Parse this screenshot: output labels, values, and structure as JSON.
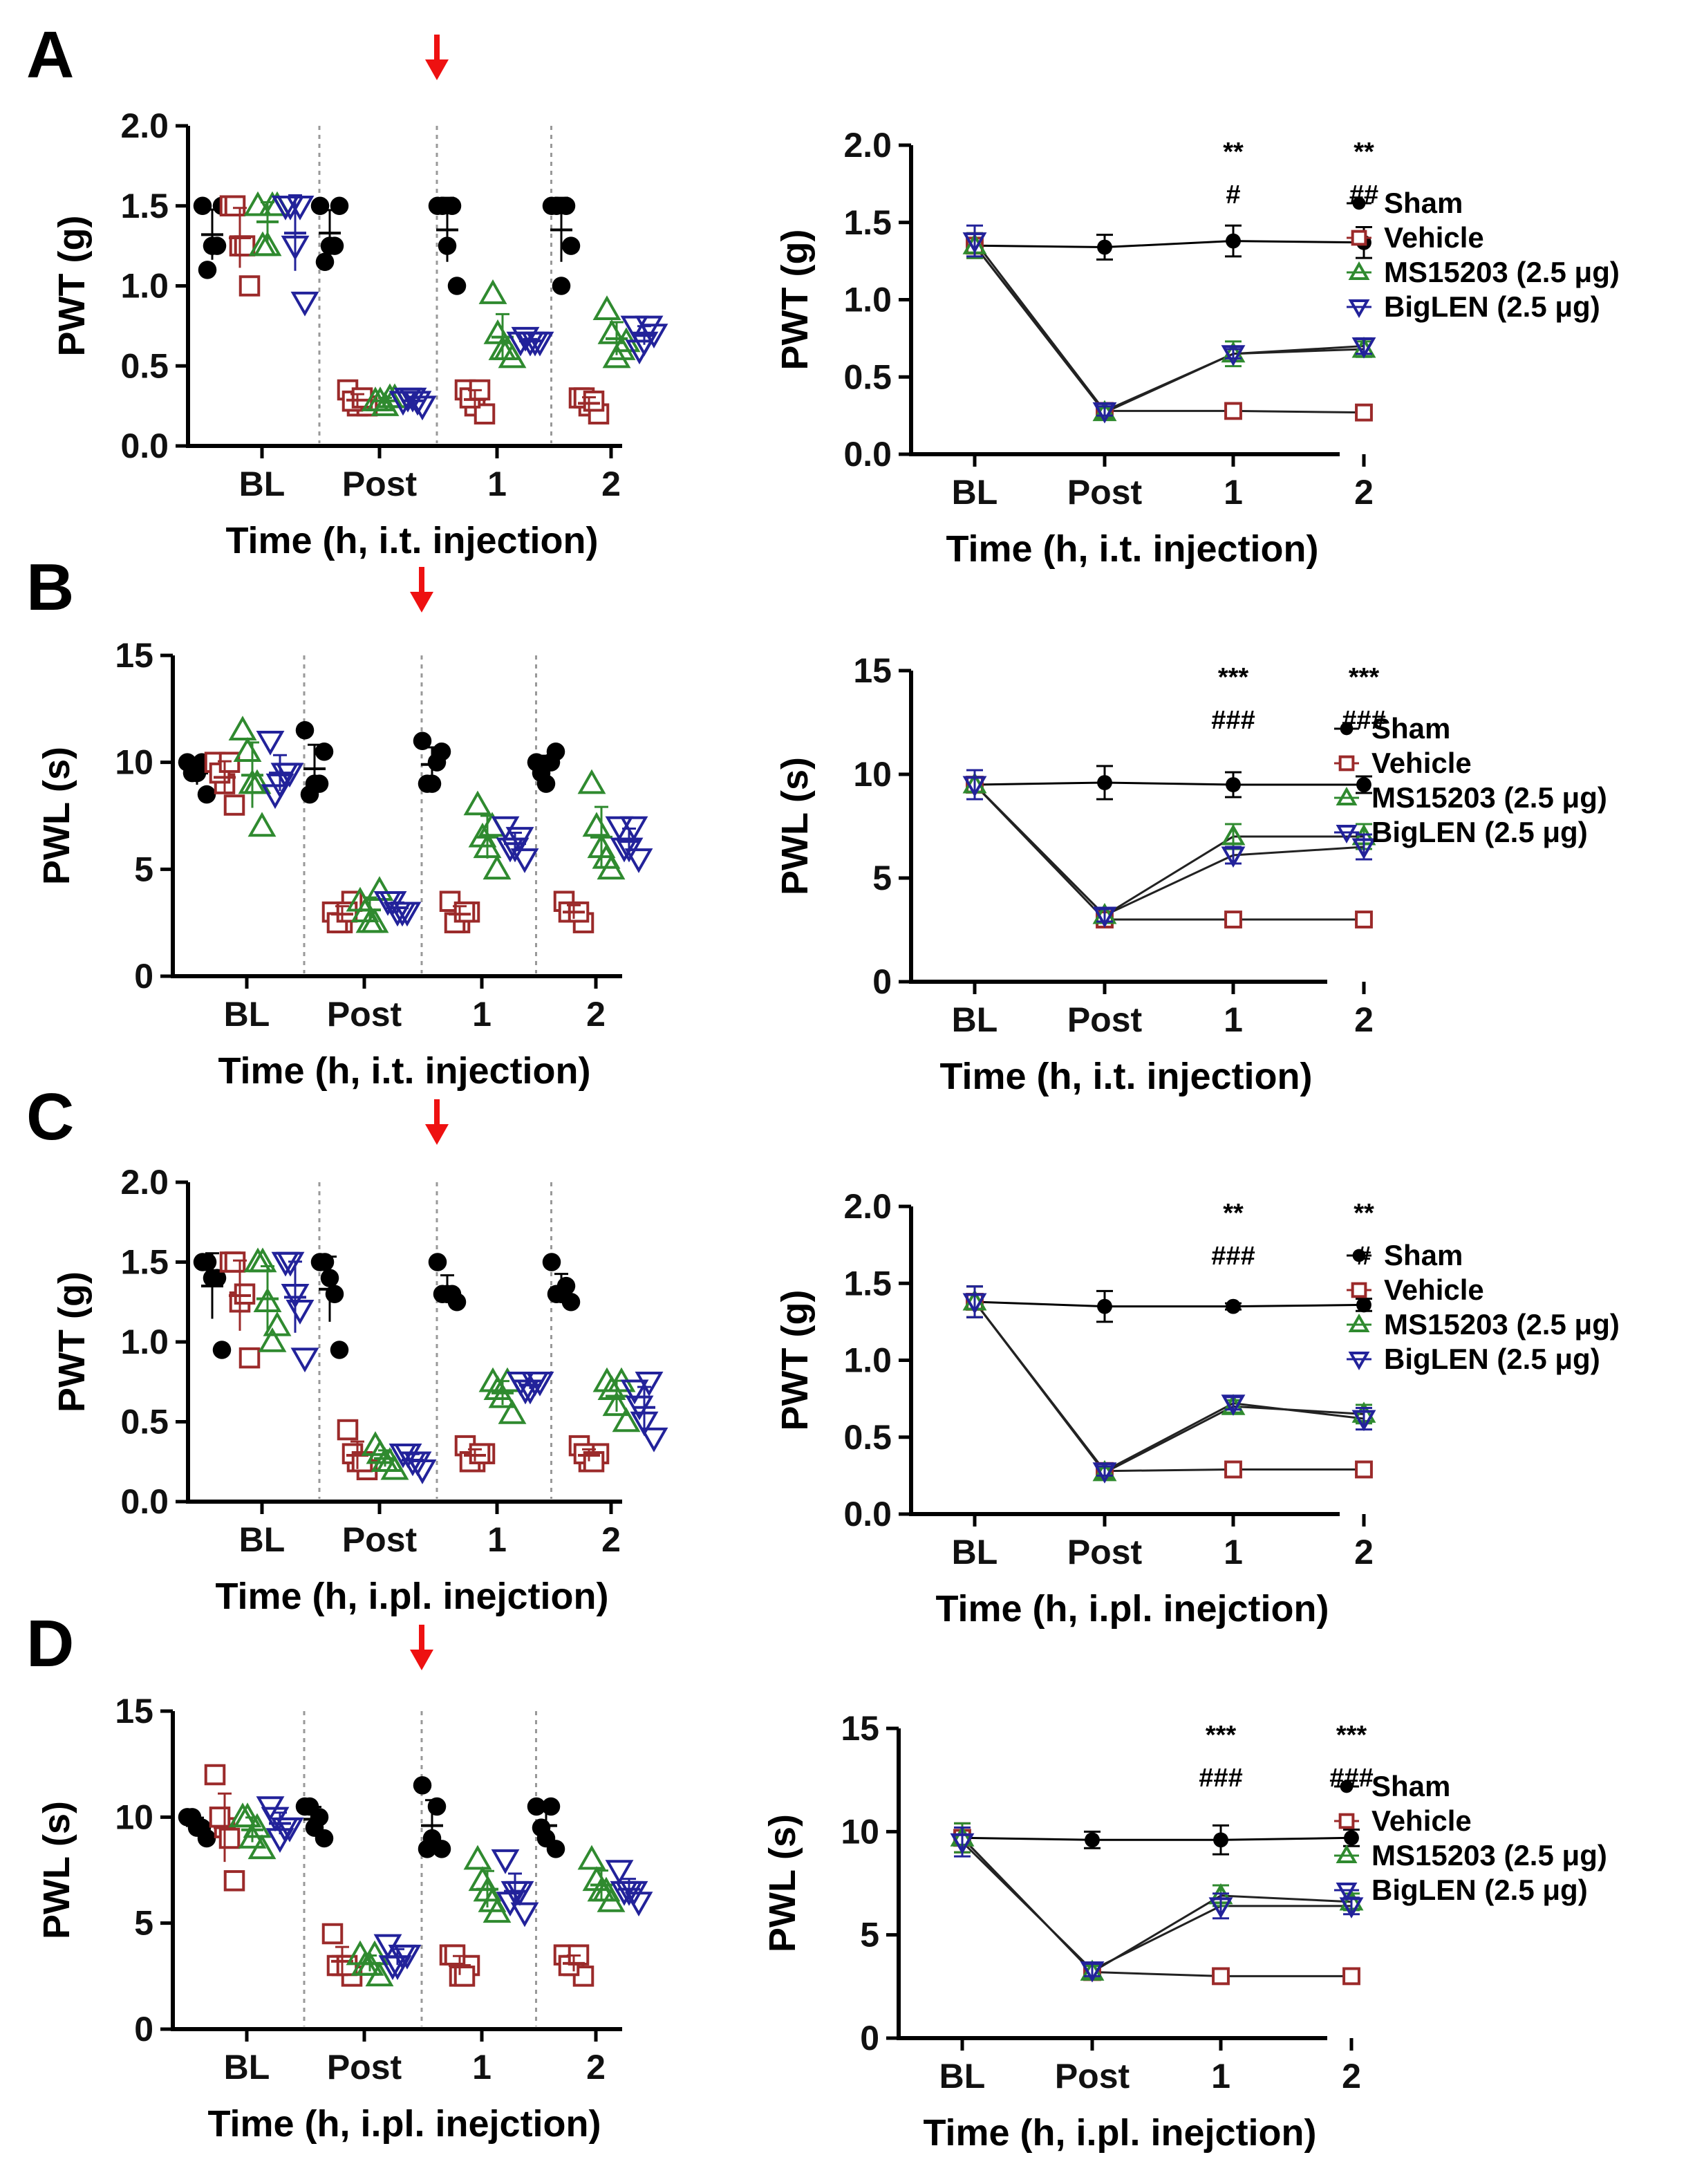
{
  "colors": {
    "sham": "#000000",
    "vehicle": "#9b2a2a",
    "ms15203": "#2f8a2f",
    "biglen": "#22229a",
    "arrow": "#ee1111",
    "divider": "#999999"
  },
  "legend": [
    "Sham",
    "Vehicle",
    "MS15203 (2.5 μg)",
    "BigLEN (2.5 μg)"
  ],
  "chart_data": [
    {
      "panel": "A",
      "side": "left",
      "type": "scatter",
      "categories": [
        "BL",
        "Post",
        "1",
        "2"
      ],
      "ylabel": "PWT (g)",
      "xlabel": "Time (h, i.t. injection)",
      "ylim": [
        0,
        2
      ],
      "yticks": [
        "0.0",
        "0.5",
        "1.0",
        "1.5",
        "2.0"
      ],
      "arrow_between": [
        "Post",
        "1"
      ],
      "series": [
        {
          "name": "Sham",
          "values": [
            [
              1.5,
              1.25,
              1.5,
              1.1,
              1.25
            ],
            [
              1.5,
              1.25,
              1.5,
              1.15,
              1.25
            ],
            [
              1.5,
              1.25,
              1.0,
              1.5,
              1.5
            ],
            [
              1.5,
              1.0,
              1.25,
              1.5,
              1.5
            ]
          ]
        },
        {
          "name": "Vehicle",
          "values": [
            [
              1.5,
              1.25,
              1.0,
              1.5,
              1.25
            ],
            [
              0.35,
              0.25,
              0.25,
              0.28,
              0.3
            ],
            [
              0.35,
              0.25,
              0.2,
              0.3,
              0.35
            ],
            [
              0.3,
              0.25,
              0.2,
              0.3,
              0.28
            ]
          ]
        },
        {
          "name": "MS15203 (2.5 μg)",
          "values": [
            [
              1.5,
              1.25,
              1.5,
              1.25,
              1.5
            ],
            [
              0.28,
              0.25,
              0.3,
              0.28,
              0.3
            ],
            [
              0.95,
              0.6,
              0.55,
              0.7,
              0.6
            ],
            [
              0.85,
              0.55,
              0.65,
              0.7,
              0.6
            ]
          ]
        },
        {
          "name": "BigLEN (2.5 μg)",
          "values": [
            [
              1.5,
              1.25,
              0.9,
              1.5,
              1.5
            ],
            [
              0.28,
              0.3,
              0.25,
              0.3,
              0.28
            ],
            [
              0.65,
              0.65,
              0.65,
              0.68,
              0.65
            ],
            [
              0.75,
              0.65,
              0.7,
              0.6,
              0.75
            ]
          ]
        }
      ]
    },
    {
      "panel": "A",
      "side": "right",
      "type": "line",
      "categories": [
        "BL",
        "Post",
        "1",
        "2"
      ],
      "ylabel": "PWT (g)",
      "xlabel": "Time (h, i.t. injection)",
      "ylim": [
        0,
        2
      ],
      "yticks": [
        "0.0",
        "0.5",
        "1.0",
        "1.5",
        "2.0"
      ],
      "series": [
        {
          "name": "Sham",
          "values": [
            1.35,
            1.34,
            1.38,
            1.37
          ],
          "errors": [
            0.08,
            0.08,
            0.1,
            0.1
          ]
        },
        {
          "name": "Vehicle",
          "values": [
            1.35,
            0.28,
            0.28,
            0.27
          ],
          "errors": [
            0.08,
            0.03,
            0.03,
            0.03
          ]
        },
        {
          "name": "MS15203 (2.5 μg)",
          "values": [
            1.35,
            0.27,
            0.65,
            0.68
          ],
          "errors": [
            0.08,
            0.03,
            0.08,
            0.05
          ]
        },
        {
          "name": "BigLEN (2.5 μg)",
          "values": [
            1.38,
            0.28,
            0.65,
            0.7
          ],
          "errors": [
            0.1,
            0.03,
            0.03,
            0.05
          ]
        }
      ],
      "annotations": [
        {
          "x": "1",
          "rows": [
            "**",
            "#"
          ]
        },
        {
          "x": "2",
          "rows": [
            "**",
            "##"
          ]
        }
      ]
    },
    {
      "panel": "B",
      "side": "left",
      "type": "scatter",
      "categories": [
        "BL",
        "Post",
        "1",
        "2"
      ],
      "ylabel": "PWL (s)",
      "xlabel": "Time (h, i.t. injection)",
      "ylim": [
        0,
        15
      ],
      "yticks": [
        "0",
        "5",
        "10",
        "15"
      ],
      "arrow_between": [
        "Post",
        "1"
      ],
      "series": [
        {
          "name": "Sham",
          "values": [
            [
              10,
              9.5,
              8.5,
              9.5,
              10
            ],
            [
              11.5,
              9,
              10.5,
              8.5,
              9
            ],
            [
              11,
              9,
              10.5,
              9,
              10
            ],
            [
              10,
              9,
              10.5,
              9.5,
              10
            ]
          ]
        },
        {
          "name": "Vehicle",
          "values": [
            [
              10,
              9,
              8,
              9.5,
              10
            ],
            [
              3,
              2.5,
              3.5,
              2.5,
              3
            ],
            [
              3.5,
              2.5,
              3,
              2.5,
              3
            ],
            [
              3.5,
              3,
              2.5,
              3,
              3
            ]
          ]
        },
        {
          "name": "MS15203 (2.5 μg)",
          "values": [
            [
              11.5,
              9,
              7,
              10.5,
              9
            ],
            [
              3.5,
              2.5,
              4,
              3,
              2.5
            ],
            [
              8,
              6,
              5,
              6.5,
              7
            ],
            [
              9,
              6,
              5,
              7,
              5.5
            ]
          ]
        },
        {
          "name": "BigLEN (2.5 μg)",
          "values": [
            [
              11,
              9,
              9.5,
              8.5,
              9.5
            ],
            [
              3.5,
              3,
              3,
              3.5,
              3
            ],
            [
              7,
              6,
              5.5,
              6,
              6.5
            ],
            [
              7,
              6,
              5.5,
              6,
              7
            ]
          ]
        }
      ]
    },
    {
      "panel": "B",
      "side": "right",
      "type": "line",
      "categories": [
        "BL",
        "Post",
        "1",
        "2"
      ],
      "ylabel": "PWL (s)",
      "xlabel": "Time (h, i.t. injection)",
      "ylim": [
        0,
        15
      ],
      "yticks": [
        "0",
        "5",
        "10",
        "15"
      ],
      "series": [
        {
          "name": "Sham",
          "values": [
            9.5,
            9.6,
            9.5,
            9.5
          ],
          "errors": [
            0.7,
            0.8,
            0.6,
            0.4
          ]
        },
        {
          "name": "Vehicle",
          "values": [
            9.5,
            3.0,
            3.0,
            3.0
          ],
          "errors": [
            0.7,
            0.3,
            0.2,
            0.2
          ]
        },
        {
          "name": "MS15203 (2.5 μg)",
          "values": [
            9.5,
            3.2,
            7.0,
            7.0
          ],
          "errors": [
            0.7,
            0.3,
            0.6,
            0.6
          ]
        },
        {
          "name": "BigLEN (2.5 μg)",
          "values": [
            9.5,
            3.2,
            6.1,
            6.5
          ],
          "errors": [
            0.7,
            0.3,
            0.4,
            0.6
          ]
        }
      ],
      "annotations": [
        {
          "x": "1",
          "rows": [
            "***",
            "###"
          ]
        },
        {
          "x": "2",
          "rows": [
            "***",
            "###"
          ]
        }
      ]
    },
    {
      "panel": "C",
      "side": "left",
      "type": "scatter",
      "categories": [
        "BL",
        "Post",
        "1",
        "2"
      ],
      "ylabel": "PWT (g)",
      "xlabel": "Time (h, i.pl. inejction)",
      "ylim": [
        0,
        2
      ],
      "yticks": [
        "0.0",
        "0.5",
        "1.0",
        "1.5",
        "2.0"
      ],
      "arrow_between": [
        "Post",
        "1"
      ],
      "series": [
        {
          "name": "Sham",
          "values": [
            [
              1.5,
              1.4,
              0.95,
              1.5,
              1.4
            ],
            [
              1.5,
              1.4,
              0.95,
              1.5,
              1.3
            ],
            [
              1.5,
              1.3,
              1.25,
              1.3,
              1.3
            ],
            [
              1.5,
              1.3,
              1.25,
              1.3,
              1.35
            ]
          ]
        },
        {
          "name": "Vehicle",
          "values": [
            [
              1.5,
              1.25,
              0.9,
              1.5,
              1.3
            ],
            [
              0.45,
              0.25,
              0.2,
              0.3,
              0.25
            ],
            [
              0.35,
              0.25,
              0.3,
              0.25,
              0.3
            ],
            [
              0.35,
              0.25,
              0.3,
              0.3,
              0.25
            ]
          ]
        },
        {
          "name": "MS15203 (2.5 μg)",
          "values": [
            [
              1.5,
              1.25,
              1.1,
              1.5,
              1.0
            ],
            [
              0.35,
              0.25,
              0.2,
              0.3,
              0.25
            ],
            [
              0.75,
              0.65,
              0.55,
              0.7,
              0.75
            ],
            [
              0.75,
              0.6,
              0.5,
              0.7,
              0.75
            ]
          ]
        },
        {
          "name": "BigLEN (2.5 μg)",
          "values": [
            [
              1.5,
              1.3,
              0.9,
              1.5,
              1.2
            ],
            [
              0.3,
              0.25,
              0.2,
              0.3,
              0.25
            ],
            [
              0.75,
              0.7,
              0.75,
              0.7,
              0.75
            ],
            [
              0.7,
              0.5,
              0.4,
              0.6,
              0.75
            ]
          ]
        }
      ]
    },
    {
      "panel": "C",
      "side": "right",
      "type": "line",
      "categories": [
        "BL",
        "Post",
        "1",
        "2"
      ],
      "ylabel": "PWT (g)",
      "xlabel": "Time (h, i.pl. inejction)",
      "ylim": [
        0,
        2
      ],
      "yticks": [
        "0.0",
        "0.5",
        "1.0",
        "1.5",
        "2.0"
      ],
      "series": [
        {
          "name": "Sham",
          "values": [
            1.38,
            1.35,
            1.35,
            1.36
          ],
          "errors": [
            0.1,
            0.1,
            0.02,
            0.04
          ]
        },
        {
          "name": "Vehicle",
          "values": [
            1.38,
            0.28,
            0.29,
            0.29
          ],
          "errors": [
            0.1,
            0.03,
            0.03,
            0.03
          ]
        },
        {
          "name": "MS15203 (2.5 μg)",
          "values": [
            1.38,
            0.27,
            0.7,
            0.65
          ],
          "errors": [
            0.1,
            0.03,
            0.04,
            0.06
          ]
        },
        {
          "name": "BigLEN (2.5 μg)",
          "values": [
            1.38,
            0.28,
            0.72,
            0.62
          ],
          "errors": [
            0.1,
            0.03,
            0.04,
            0.07
          ]
        }
      ],
      "annotations": [
        {
          "x": "1",
          "rows": [
            "**",
            "###"
          ]
        },
        {
          "x": "2",
          "rows": [
            "**",
            "#"
          ]
        }
      ]
    },
    {
      "panel": "D",
      "side": "left",
      "type": "scatter",
      "categories": [
        "BL",
        "Post",
        "1",
        "2"
      ],
      "ylabel": "PWL (s)",
      "xlabel": "Time (h, i.pl. inejction)",
      "ylim": [
        0,
        15
      ],
      "yticks": [
        "0",
        "5",
        "10",
        "15"
      ],
      "arrow_between": [
        "Post",
        "1"
      ],
      "series": [
        {
          "name": "Sham",
          "values": [
            [
              10,
              9.5,
              9,
              10,
              9.5
            ],
            [
              10.5,
              9.5,
              9,
              10.5,
              10
            ],
            [
              11.5,
              9,
              8.5,
              8.5,
              10.5
            ],
            [
              10.5,
              9,
              8.5,
              9.5,
              10.5
            ]
          ]
        },
        {
          "name": "Vehicle",
          "values": [
            [
              12,
              9.5,
              7,
              10,
              9
            ],
            [
              4.5,
              3,
              2.5,
              3,
              3
            ],
            [
              3.5,
              2.5,
              3,
              3.5,
              2.5
            ],
            [
              3.5,
              3,
              2.5,
              3,
              3.5
            ]
          ]
        },
        {
          "name": "MS15203 (2.5 μg)",
          "values": [
            [
              10,
              9,
              8.5,
              10,
              9.5
            ],
            [
              3.5,
              3,
              2.5,
              3,
              3.5
            ],
            [
              8,
              6.5,
              5.5,
              7,
              6
            ],
            [
              8,
              6.5,
              6,
              7,
              6.5
            ]
          ]
        },
        {
          "name": "BigLEN (2.5 μg)",
          "values": [
            [
              10.5,
              9,
              9.5,
              10,
              9.5
            ],
            [
              4,
              3,
              3.5,
              3,
              3.5
            ],
            [
              8,
              6.5,
              5.5,
              6,
              6.5
            ],
            [
              7.5,
              6.5,
              6,
              6.5,
              6.5
            ]
          ]
        }
      ]
    },
    {
      "panel": "D",
      "side": "right",
      "type": "line",
      "categories": [
        "BL",
        "Post",
        "1",
        "2"
      ],
      "ylabel": "PWL (s)",
      "xlabel": "Time (h, i.pl. inejction)",
      "ylim": [
        0,
        15
      ],
      "yticks": [
        "0",
        "5",
        "10",
        "15"
      ],
      "series": [
        {
          "name": "Sham",
          "values": [
            9.7,
            9.6,
            9.6,
            9.7
          ],
          "errors": [
            0.7,
            0.4,
            0.7,
            0.4
          ]
        },
        {
          "name": "Vehicle",
          "values": [
            9.7,
            3.2,
            3.0,
            3.0
          ],
          "errors": [
            0.7,
            0.3,
            0.2,
            0.2
          ]
        },
        {
          "name": "MS15203 (2.5 μg)",
          "values": [
            9.7,
            3.2,
            6.9,
            6.6
          ],
          "errors": [
            0.7,
            0.3,
            0.5,
            0.4
          ]
        },
        {
          "name": "BigLEN (2.5 μg)",
          "values": [
            9.5,
            3.3,
            6.4,
            6.4
          ],
          "errors": [
            0.7,
            0.3,
            0.6,
            0.4
          ]
        }
      ],
      "annotations": [
        {
          "x": "1",
          "rows": [
            "***",
            "###"
          ]
        },
        {
          "x": "2",
          "rows": [
            "***",
            "###"
          ]
        }
      ]
    }
  ]
}
